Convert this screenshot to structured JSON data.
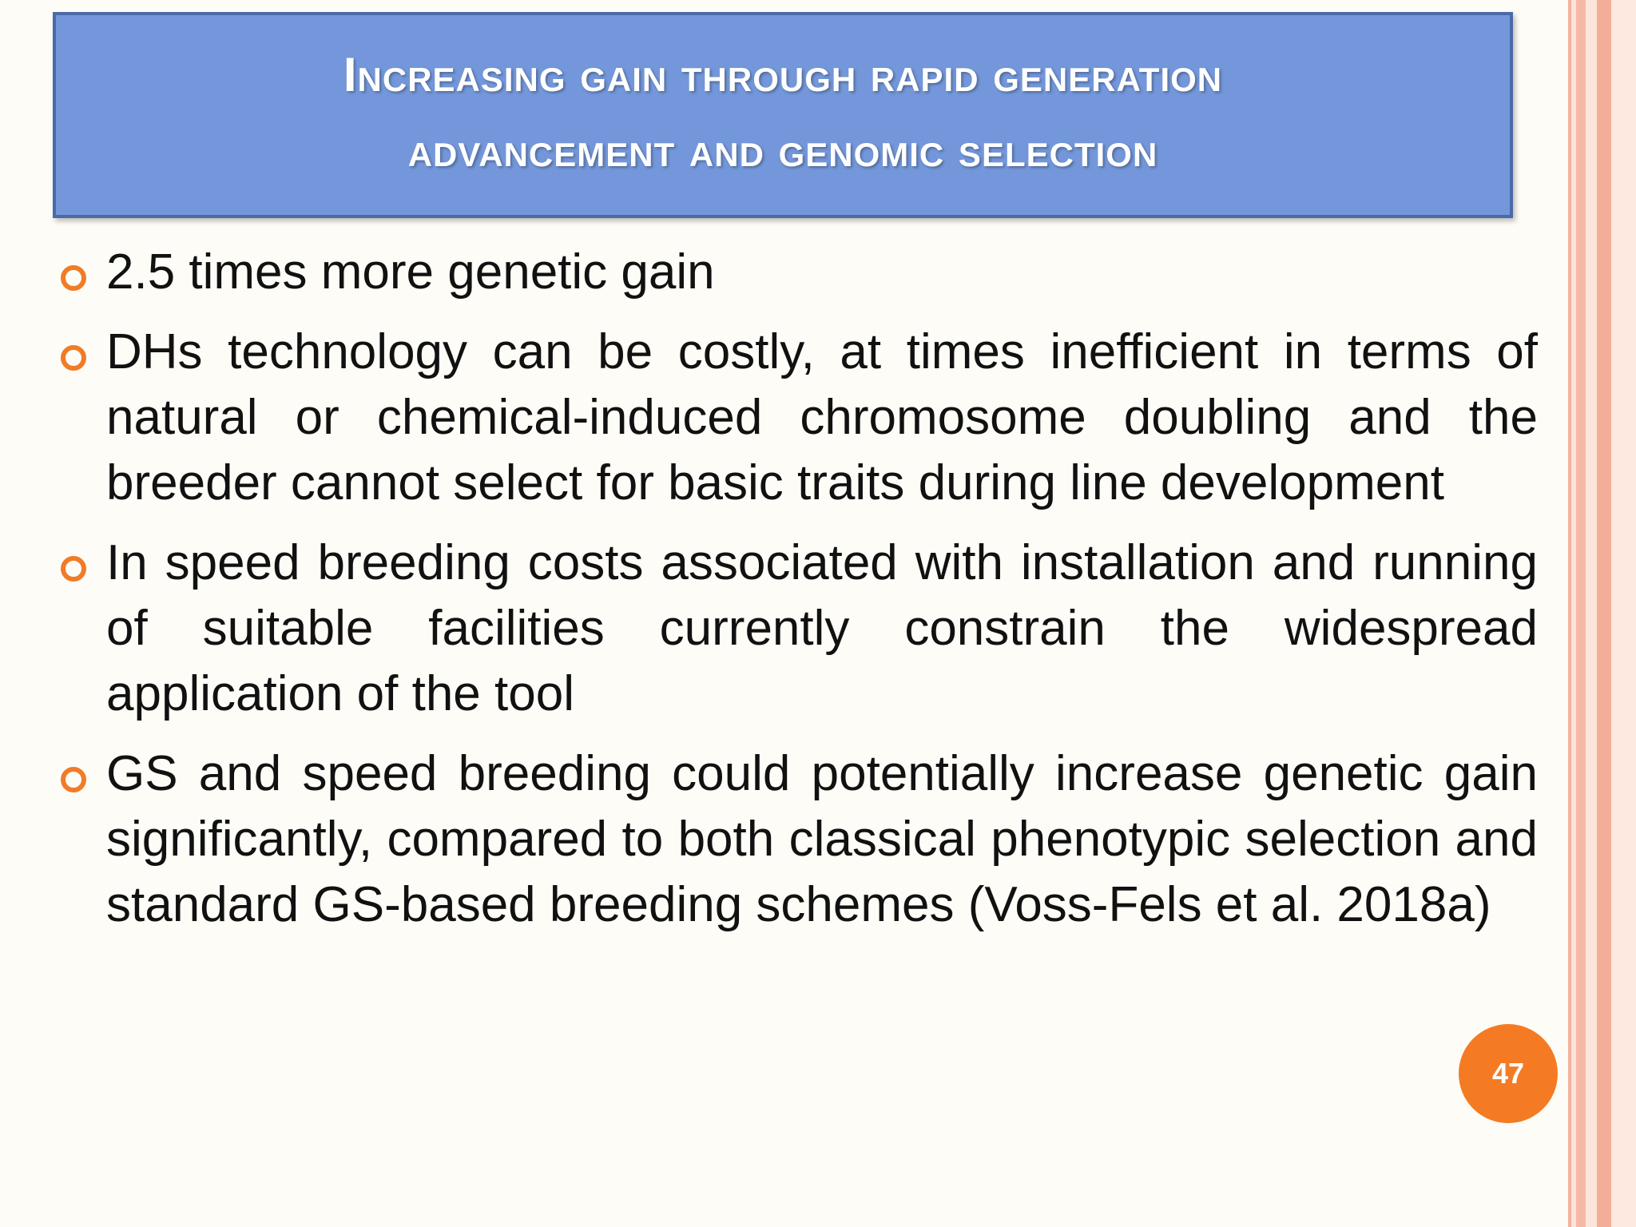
{
  "slide": {
    "title_line1": "Increasing gain through rapid generation",
    "title_line2": "advancement and genomic selection",
    "bullets": [
      "2.5 times more genetic gain",
      "DHs technology can be costly, at times inefficient in terms of natural or chemical-induced chromosome doubling and the breeder cannot select for basic traits during line development",
      "In speed breeding costs associated with installation and running of suitable facilities currently constrain the widespread application of the tool",
      "GS and speed breeding could potentially increase genetic gain significantly, compared to both classical phenotypic selection and standard GS-based breeding schemes (Voss-Fels et al. 2018a)"
    ],
    "page_number": "47"
  },
  "colors": {
    "title_bg": "#7397da",
    "title_border": "#4a6aa8",
    "bullet_accent": "#f07c28",
    "page_badge": "#f47b23",
    "background": "#fefcf7"
  },
  "icons": {
    "bullet": "hollow-circle-bullet-icon"
  }
}
